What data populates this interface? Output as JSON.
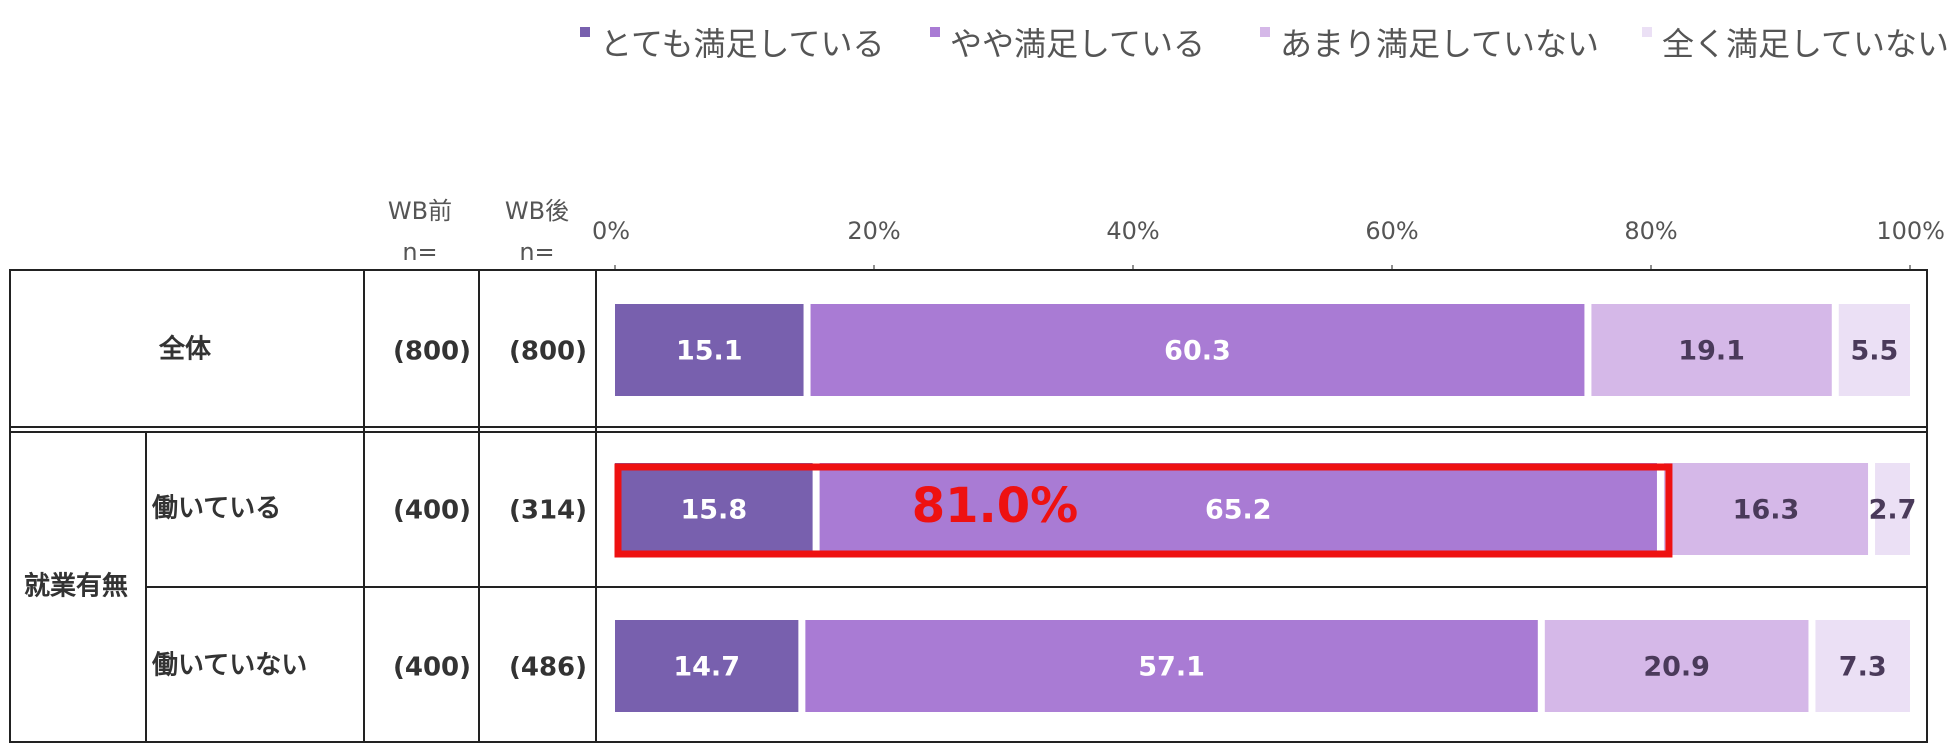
{
  "chart_data": {
    "type": "bar",
    "orientation": "horizontal-stacked-100",
    "legend": {
      "placement": "top-right",
      "items": [
        {
          "label": "とても満足している",
          "color": "#7860ae"
        },
        {
          "label": "やや満足している",
          "color": "#a97bd4"
        },
        {
          "label": "あまり満足していない",
          "color": "#d5b8e8"
        },
        {
          "label": "全く満足していない",
          "color": "#ebe0f5"
        }
      ]
    },
    "x_ticks": [
      "0%",
      "20%",
      "40%",
      "60%",
      "80%",
      "100%"
    ],
    "xlim": [
      0,
      100
    ],
    "columns": {
      "wb_before": "WB前",
      "wb_after": "WB後",
      "n": "n="
    },
    "group_label": "就業有無",
    "rows": [
      {
        "label": "全体",
        "n_before": "(800)",
        "n_after": "(800)",
        "values": [
          15.1,
          60.3,
          19.1,
          5.5
        ],
        "labels": [
          "15.1",
          "60.3",
          "19.1",
          "5.5"
        ]
      },
      {
        "label": "働いている",
        "n_before": "(400)",
        "n_after": "(314)",
        "values": [
          15.8,
          65.2,
          16.3,
          2.7
        ],
        "labels": [
          "15.8",
          "65.2",
          "16.3",
          "2.7"
        ]
      },
      {
        "label": "働いていない",
        "n_before": "(400)",
        "n_after": "(486)",
        "values": [
          14.7,
          57.1,
          20.9,
          7.3
        ],
        "labels": [
          "14.7",
          "57.1",
          "20.9",
          "7.3"
        ]
      }
    ],
    "segment_label_colors": [
      "#ffffff",
      "#ffffff",
      "#4a3a5a",
      "#4a3a5a"
    ],
    "highlight": {
      "row": 1,
      "segments": [
        0,
        1
      ],
      "text": "81.0%",
      "color": "#ee1111"
    }
  }
}
